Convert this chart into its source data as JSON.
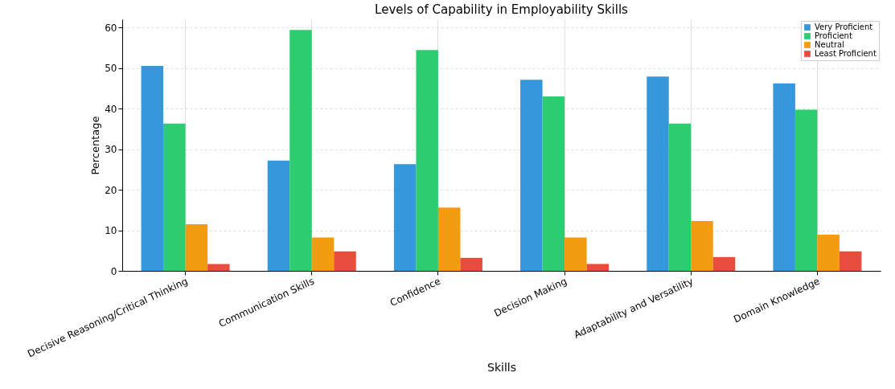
{
  "chart_data": {
    "type": "bar",
    "title": "Levels of Capability in Employability Skills",
    "xlabel": "Skills",
    "ylabel": "Percentage",
    "categories": [
      "Decisive Reasoning/Critical Thinking",
      "Communication Skills",
      "Confidence",
      "Decision Making",
      "Adaptability and Versatility",
      "Domain Knowledge"
    ],
    "series": [
      {
        "name": "Very Proficient",
        "color": "#3498db",
        "values": [
          50.5,
          27.2,
          26.3,
          47.1,
          47.9,
          46.2
        ]
      },
      {
        "name": "Proficient",
        "color": "#2ecc71",
        "values": [
          36.3,
          59.4,
          54.4,
          43.0,
          36.3,
          39.7
        ]
      },
      {
        "name": "Neutral",
        "color": "#f39c12",
        "values": [
          11.5,
          8.2,
          15.6,
          8.2,
          12.3,
          8.9
        ]
      },
      {
        "name": "Least Proficient",
        "color": "#e74c3c",
        "values": [
          1.7,
          4.8,
          3.2,
          1.7,
          3.4,
          4.8
        ]
      }
    ],
    "ylim": [
      0,
      62
    ],
    "yticks": [
      0,
      10,
      20,
      30,
      40,
      50,
      60
    ],
    "grid": true,
    "legend": "top right"
  }
}
